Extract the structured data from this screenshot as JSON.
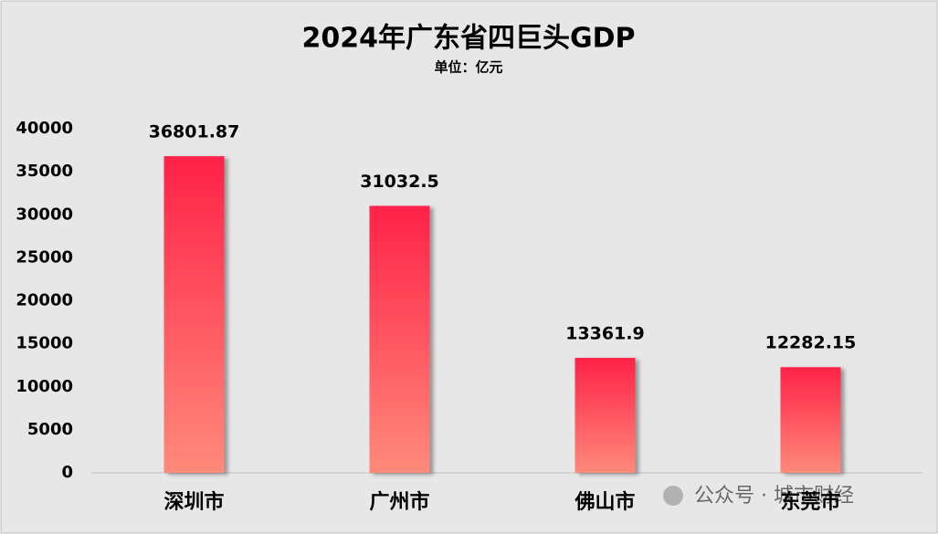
{
  "chart_data": {
    "type": "bar",
    "title": "2024年广东省四巨头GDP",
    "subtitle": "单位：亿元",
    "categories": [
      "深圳市",
      "广州市",
      "佛山市",
      "东莞市"
    ],
    "values": [
      36801.87,
      31032.5,
      13361.9,
      12282.15
    ],
    "gradient": [
      "#ff2248",
      "#ff8a7a"
    ],
    "ylim": [
      0,
      40000
    ],
    "yticks": [
      0,
      5000,
      10000,
      15000,
      20000,
      25000,
      30000,
      35000,
      40000
    ],
    "grid": false,
    "watermark": "公众号 · 城市财经"
  }
}
